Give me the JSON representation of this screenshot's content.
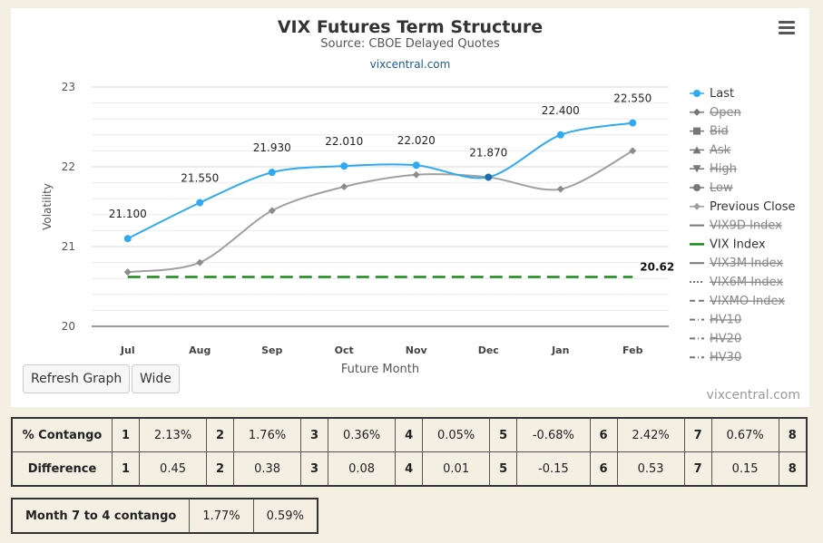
{
  "chart_data": {
    "type": "line",
    "title": "VIX Futures Term Structure",
    "subtitle": "Source: CBOE Delayed Quotes",
    "link": "vixcentral.com",
    "credit": "vixcentral.com",
    "xlabel": "Future Month",
    "ylabel": "Volatility",
    "categories": [
      "Jul",
      "Aug",
      "Sep",
      "Oct",
      "Nov",
      "Dec",
      "Jan",
      "Feb"
    ],
    "ylim": [
      20,
      23
    ],
    "yticks": [
      20,
      21,
      22,
      23
    ],
    "grid": true,
    "legend_position": "right",
    "series": [
      {
        "name": "Last",
        "values": [
          21.1,
          21.55,
          21.93,
          22.01,
          22.02,
          21.87,
          22.4,
          22.55
        ],
        "color": "#2eaaf0",
        "labels": [
          "21.100",
          "21.550",
          "21.930",
          "22.010",
          "22.020",
          "21.870",
          "22.400",
          "22.550"
        ]
      },
      {
        "name": "Previous Close",
        "values": [
          20.68,
          20.8,
          21.45,
          21.75,
          21.9,
          21.87,
          21.72,
          22.2
        ],
        "color": "#a0a0a0"
      },
      {
        "name": "VIX Index",
        "values": [
          20.62,
          20.62,
          20.62,
          20.62,
          20.62,
          20.62,
          20.62,
          20.62
        ],
        "color": "#1a8a1a",
        "end_label": "20.62"
      }
    ],
    "legend": [
      {
        "name": "Last",
        "active": true,
        "symbol": "circle",
        "color": "#2eaaf0"
      },
      {
        "name": "Open",
        "active": false,
        "symbol": "diamond",
        "color": "#666666"
      },
      {
        "name": "Bid",
        "active": false,
        "symbol": "square",
        "color": "#666666"
      },
      {
        "name": "Ask",
        "active": false,
        "symbol": "triangle",
        "color": "#666666"
      },
      {
        "name": "High",
        "active": false,
        "symbol": "triangle-down",
        "color": "#666666"
      },
      {
        "name": "Low",
        "active": false,
        "symbol": "circle",
        "color": "#666666"
      },
      {
        "name": "Previous Close",
        "active": true,
        "symbol": "diamond",
        "color": "#a0a0a0"
      },
      {
        "name": "VIX9D Index",
        "active": false,
        "symbol": "solid",
        "color": "#888888"
      },
      {
        "name": "VIX Index",
        "active": true,
        "symbol": "solid",
        "color": "#1a8a1a"
      },
      {
        "name": "VIX3M Index",
        "active": false,
        "symbol": "solid",
        "color": "#888888"
      },
      {
        "name": "VIX6M Index",
        "active": false,
        "symbol": "dotted",
        "color": "#888888"
      },
      {
        "name": "VIXMO Index",
        "active": false,
        "symbol": "dashed",
        "color": "#888888"
      },
      {
        "name": "HV10",
        "active": false,
        "symbol": "dashdot",
        "color": "#888888"
      },
      {
        "name": "HV20",
        "active": false,
        "symbol": "dashdot",
        "color": "#888888"
      },
      {
        "name": "HV30",
        "active": false,
        "symbol": "dashdot",
        "color": "#888888"
      }
    ]
  },
  "buttons": {
    "refresh": "Refresh Graph",
    "wide": "Wide"
  },
  "contango": {
    "label": "% Contango",
    "cells": [
      [
        "1",
        "2.13%"
      ],
      [
        "2",
        "1.76%"
      ],
      [
        "3",
        "0.36%"
      ],
      [
        "4",
        "0.05%"
      ],
      [
        "5",
        "-0.68%"
      ],
      [
        "6",
        "2.42%"
      ],
      [
        "7",
        "0.67%"
      ],
      [
        "8",
        ""
      ]
    ]
  },
  "difference": {
    "label": "Difference",
    "cells": [
      [
        "1",
        "0.45"
      ],
      [
        "2",
        "0.38"
      ],
      [
        "3",
        "0.08"
      ],
      [
        "4",
        "0.01"
      ],
      [
        "5",
        "-0.15"
      ],
      [
        "6",
        "0.53"
      ],
      [
        "7",
        "0.15"
      ],
      [
        "8",
        ""
      ]
    ]
  },
  "month_contango": {
    "label": "Month 7 to 4 contango",
    "v1": "1.77%",
    "v2": "0.59%"
  }
}
